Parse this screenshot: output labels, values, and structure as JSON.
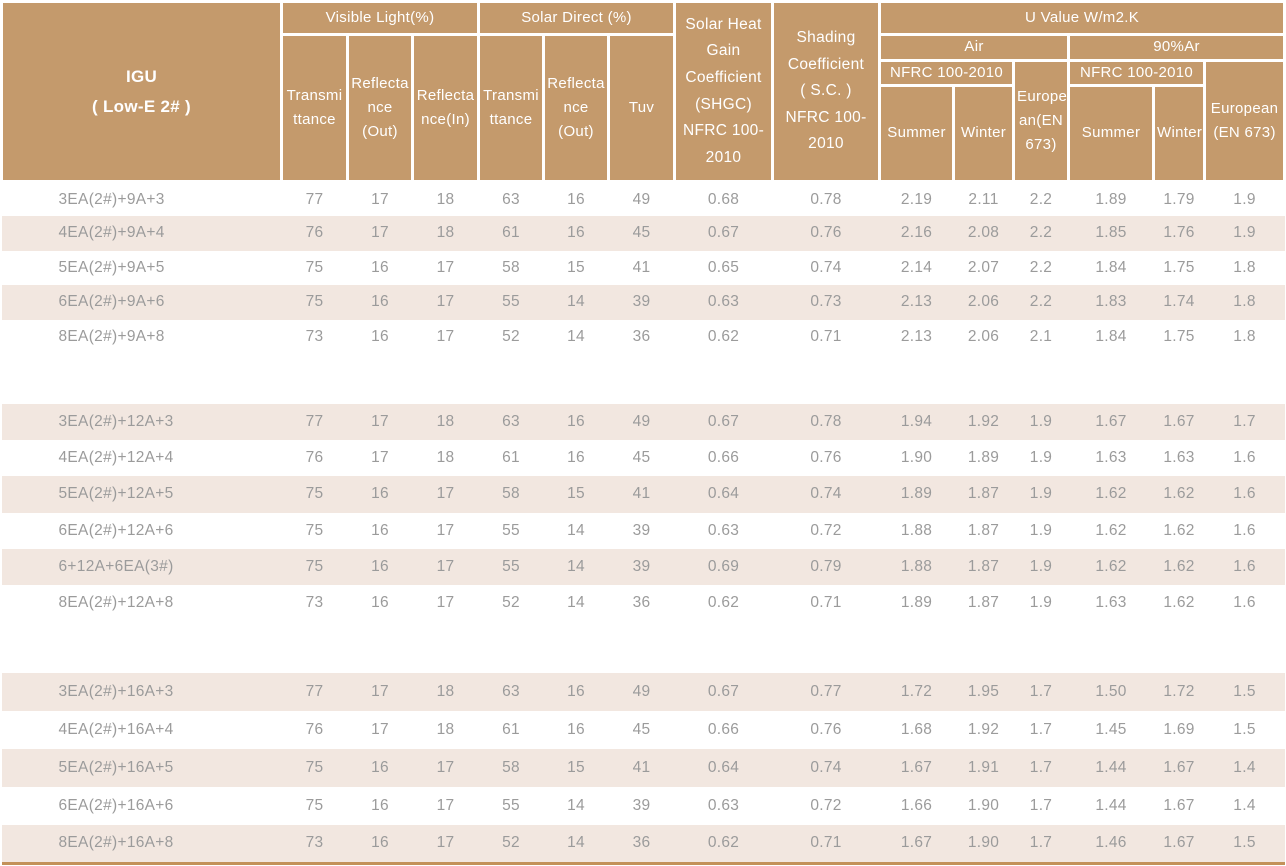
{
  "colors": {
    "header_bg": "#C49A6C",
    "header_text": "#FFFFFF",
    "stripe_bg": "#F2E7E0",
    "body_text": "#9B9B9B",
    "bottom_rule": "#C39159"
  },
  "table": {
    "header": {
      "igu": "IGU\n( Low-E 2# )",
      "visible_light": "Visible Light(%)",
      "solar_direct": "Solar Direct (%)",
      "shgc": "Solar Heat\nGain\nCoefficient\n(SHGC)\nNFRC 100-\n2010",
      "shading": "Shading\nCoefficient\n( S.C. )\nNFRC 100-\n2010",
      "u_value": "U Value W/m2.K",
      "air": "Air",
      "argon": "90%Ar",
      "nfrc_air": "NFRC 100-2010",
      "nfrc_argon": "NFRC 100-2010",
      "vl_transmittance": "Transmi\nttance",
      "vl_reflectance_out": "Reflecta\nnce\n(Out)",
      "vl_reflectance_in": "Reflecta\nnce(In)",
      "sd_transmittance": "Transmi\nttance",
      "sd_reflectance_out": "Reflecta\nnce\n(Out)",
      "tuv": "Tuv",
      "air_summer": "Summer",
      "air_winter": "Winter",
      "air_european": "Europe\nan(EN\n673)",
      "argon_summer": "Summer",
      "argon_winter": "Winter",
      "argon_european": "European\n(EN 673)"
    },
    "rows": [
      {
        "label": "3EA(2#)+9A+3",
        "group": "g1",
        "striped": false,
        "values": [
          "77",
          "17",
          "18",
          "63",
          "16",
          "49",
          "0.68",
          "0.78",
          "2.19",
          "2.11",
          "2.2",
          "1.89",
          "1.79",
          "1.9"
        ]
      },
      {
        "label": "4EA(2#)+9A+4",
        "group": "g1",
        "striped": true,
        "values": [
          "76",
          "17",
          "18",
          "61",
          "16",
          "45",
          "0.67",
          "0.76",
          "2.16",
          "2.08",
          "2.2",
          "1.85",
          "1.76",
          "1.9"
        ]
      },
      {
        "label": "5EA(2#)+9A+5",
        "group": "g1",
        "striped": false,
        "values": [
          "75",
          "16",
          "17",
          "58",
          "15",
          "41",
          "0.65",
          "0.74",
          "2.14",
          "2.07",
          "2.2",
          "1.84",
          "1.75",
          "1.8"
        ]
      },
      {
        "label": "6EA(2#)+9A+6",
        "group": "g1",
        "striped": true,
        "values": [
          "75",
          "16",
          "17",
          "55",
          "14",
          "39",
          "0.63",
          "0.73",
          "2.13",
          "2.06",
          "2.2",
          "1.83",
          "1.74",
          "1.8"
        ]
      },
      {
        "label": "8EA(2#)+9A+8",
        "group": "g1",
        "striped": false,
        "values": [
          "73",
          "16",
          "17",
          "52",
          "14",
          "36",
          "0.62",
          "0.71",
          "2.13",
          "2.06",
          "2.1",
          "1.84",
          "1.75",
          "1.8"
        ]
      },
      {
        "spacer": true,
        "group": "gap1"
      },
      {
        "label": "3EA(2#)+12A+3",
        "group": "g2",
        "striped": true,
        "values": [
          "77",
          "17",
          "18",
          "63",
          "16",
          "49",
          "0.67",
          "0.78",
          "1.94",
          "1.92",
          "1.9",
          "1.67",
          "1.67",
          "1.7"
        ]
      },
      {
        "label": "4EA(2#)+12A+4",
        "group": "g2",
        "striped": false,
        "values": [
          "76",
          "17",
          "18",
          "61",
          "16",
          "45",
          "0.66",
          "0.76",
          "1.90",
          "1.89",
          "1.9",
          "1.63",
          "1.63",
          "1.6"
        ]
      },
      {
        "label": "5EA(2#)+12A+5",
        "group": "g2",
        "striped": true,
        "values": [
          "75",
          "16",
          "17",
          "58",
          "15",
          "41",
          "0.64",
          "0.74",
          "1.89",
          "1.87",
          "1.9",
          "1.62",
          "1.62",
          "1.6"
        ]
      },
      {
        "label": "6EA(2#)+12A+6",
        "group": "g2",
        "striped": false,
        "values": [
          "75",
          "16",
          "17",
          "55",
          "14",
          "39",
          "0.63",
          "0.72",
          "1.88",
          "1.87",
          "1.9",
          "1.62",
          "1.62",
          "1.6"
        ]
      },
      {
        "label": "6+12A+6EA(3#)",
        "group": "g2",
        "striped": true,
        "values": [
          "75",
          "16",
          "17",
          "55",
          "14",
          "39",
          "0.69",
          "0.79",
          "1.88",
          "1.87",
          "1.9",
          "1.62",
          "1.62",
          "1.6"
        ]
      },
      {
        "label": "8EA(2#)+12A+8",
        "group": "g2",
        "striped": false,
        "values": [
          "73",
          "16",
          "17",
          "52",
          "14",
          "36",
          "0.62",
          "0.71",
          "1.89",
          "1.87",
          "1.9",
          "1.63",
          "1.62",
          "1.6"
        ]
      },
      {
        "spacer": true,
        "group": "gap2"
      },
      {
        "label": "3EA(2#)+16A+3",
        "group": "g3",
        "striped": true,
        "values": [
          "77",
          "17",
          "18",
          "63",
          "16",
          "49",
          "0.67",
          "0.77",
          "1.72",
          "1.95",
          "1.7",
          "1.50",
          "1.72",
          "1.5"
        ]
      },
      {
        "label": "4EA(2#)+16A+4",
        "group": "g3",
        "striped": false,
        "values": [
          "76",
          "17",
          "18",
          "61",
          "16",
          "45",
          "0.66",
          "0.76",
          "1.68",
          "1.92",
          "1.7",
          "1.45",
          "1.69",
          "1.5"
        ]
      },
      {
        "label": "5EA(2#)+16A+5",
        "group": "g3",
        "striped": true,
        "values": [
          "75",
          "16",
          "17",
          "58",
          "15",
          "41",
          "0.64",
          "0.74",
          "1.67",
          "1.91",
          "1.7",
          "1.44",
          "1.67",
          "1.4"
        ]
      },
      {
        "label": "6EA(2#)+16A+6",
        "group": "g3",
        "striped": false,
        "values": [
          "75",
          "16",
          "17",
          "55",
          "14",
          "39",
          "0.63",
          "0.72",
          "1.66",
          "1.90",
          "1.7",
          "1.44",
          "1.67",
          "1.4"
        ]
      },
      {
        "label": "8EA(2#)+16A+8",
        "group": "g3",
        "striped": true,
        "values": [
          "73",
          "16",
          "17",
          "52",
          "14",
          "36",
          "0.62",
          "0.71",
          "1.67",
          "1.90",
          "1.7",
          "1.46",
          "1.67",
          "1.5"
        ]
      }
    ]
  }
}
